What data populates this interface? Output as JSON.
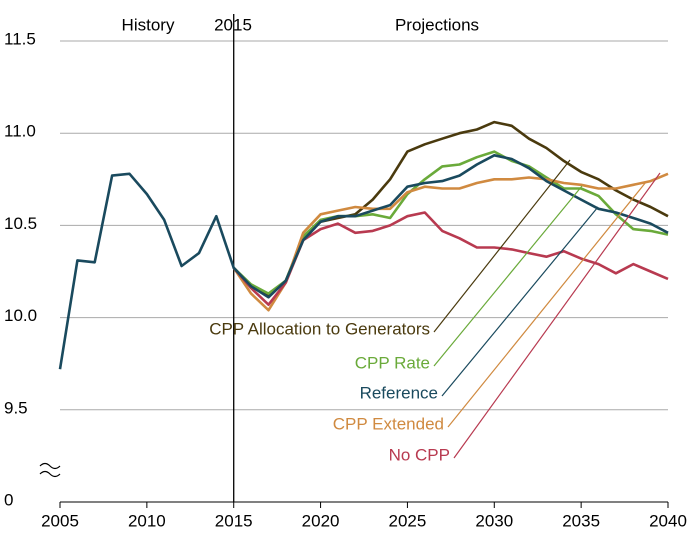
{
  "chart_data": {
    "type": "line",
    "annotations": [
      "History",
      "2015",
      "Projections"
    ],
    "x": [
      2005,
      2006,
      2007,
      2008,
      2009,
      2010,
      2011,
      2012,
      2013,
      2014,
      2015,
      2016,
      2017,
      2018,
      2019,
      2020,
      2021,
      2022,
      2023,
      2024,
      2025,
      2026,
      2027,
      2028,
      2029,
      2030,
      2031,
      2032,
      2033,
      2034,
      2035,
      2036,
      2037,
      2038,
      2039,
      2040
    ],
    "xlim": [
      2005,
      2040
    ],
    "xticks": [
      2005,
      2010,
      2015,
      2020,
      2025,
      2030,
      2035,
      2040
    ],
    "ylim": [
      0,
      11.5
    ],
    "axis_break": [
      0,
      9.0
    ],
    "yticks": [
      0,
      9.5,
      {
        "value": 10.0,
        "label": "10.0"
      },
      10.5,
      {
        "value": 11.0,
        "label": "11.0"
      },
      11.5
    ],
    "grid": true,
    "vline": 2015,
    "series": [
      {
        "name": "CPP Allocation to Generators",
        "color": "#4a3a0e",
        "values": [
          null,
          null,
          null,
          null,
          null,
          null,
          null,
          null,
          null,
          null,
          10.27,
          10.17,
          10.12,
          10.2,
          10.43,
          10.52,
          10.54,
          10.56,
          10.64,
          10.75,
          10.9,
          10.94,
          10.97,
          11.0,
          11.02,
          11.06,
          11.04,
          10.97,
          10.92,
          10.85,
          10.79,
          10.75,
          10.69,
          10.64,
          10.6,
          10.55
        ]
      },
      {
        "name": "CPP Rate",
        "color": "#6aaa3a",
        "values": [
          null,
          null,
          null,
          null,
          null,
          null,
          null,
          null,
          null,
          null,
          10.27,
          10.18,
          10.13,
          10.2,
          10.44,
          10.53,
          10.55,
          10.55,
          10.56,
          10.54,
          10.67,
          10.75,
          10.82,
          10.83,
          10.87,
          10.9,
          10.85,
          10.82,
          10.76,
          10.7,
          10.7,
          10.66,
          10.56,
          10.48,
          10.47,
          10.45
        ]
      },
      {
        "name": "CPP Extended",
        "color": "#d08a40",
        "values": [
          null,
          null,
          null,
          null,
          null,
          null,
          null,
          null,
          null,
          null,
          10.27,
          10.13,
          10.04,
          10.19,
          10.46,
          10.56,
          10.58,
          10.6,
          10.59,
          10.59,
          10.68,
          10.71,
          10.7,
          10.7,
          10.73,
          10.75,
          10.75,
          10.76,
          10.75,
          10.73,
          10.72,
          10.7,
          10.7,
          10.72,
          10.74,
          10.78
        ]
      },
      {
        "name": "No CPP",
        "color": "#b83a50",
        "values": [
          null,
          null,
          null,
          null,
          null,
          null,
          null,
          null,
          null,
          null,
          10.27,
          10.16,
          10.07,
          10.19,
          10.42,
          10.48,
          10.51,
          10.46,
          10.47,
          10.5,
          10.55,
          10.57,
          10.47,
          10.43,
          10.38,
          10.38,
          10.37,
          10.35,
          10.33,
          10.36,
          10.32,
          10.29,
          10.24,
          10.29,
          10.25,
          10.21
        ]
      },
      {
        "name": "Reference",
        "color": "#1a4a5e",
        "values": [
          9.72,
          10.31,
          10.3,
          10.77,
          10.78,
          10.67,
          10.53,
          10.28,
          10.35,
          10.55,
          10.27,
          10.17,
          10.11,
          10.2,
          10.42,
          10.52,
          10.55,
          10.55,
          10.58,
          10.61,
          10.71,
          10.73,
          10.74,
          10.77,
          10.83,
          10.88,
          10.86,
          10.81,
          10.74,
          10.69,
          10.64,
          10.59,
          10.57,
          10.54,
          10.51,
          10.46
        ]
      }
    ]
  }
}
